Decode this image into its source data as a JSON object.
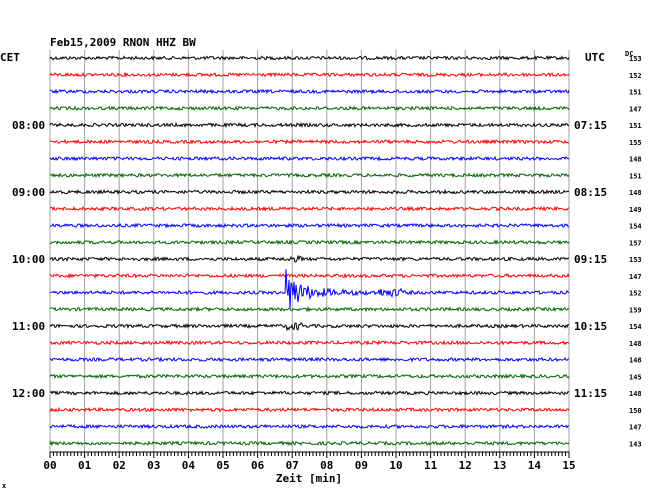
{
  "chart_data": {
    "type": "line",
    "title": "Feb15,2009   RNON HHZ BW",
    "left_label": "CET",
    "right_label": "UTC",
    "dc_label": "DC",
    "xlabel": "Zeit [min]",
    "xlim": [
      0,
      15
    ],
    "x_ticks": [
      "00",
      "01",
      "02",
      "03",
      "04",
      "05",
      "06",
      "07",
      "08",
      "09",
      "10",
      "11",
      "12",
      "13",
      "14",
      "15"
    ],
    "rows": 24,
    "trace_colors": [
      "#000000",
      "#ff0000",
      "#0000ff",
      "#006400"
    ],
    "left_time_labels": [
      {
        "row": 4,
        "text": "08:00"
      },
      {
        "row": 8,
        "text": "09:00"
      },
      {
        "row": 12,
        "text": "10:00"
      },
      {
        "row": 16,
        "text": "11:00"
      },
      {
        "row": 20,
        "text": "12:00"
      }
    ],
    "right_time_labels": [
      {
        "row": 4,
        "text": "07:15"
      },
      {
        "row": 8,
        "text": "08:15"
      },
      {
        "row": 12,
        "text": "09:15"
      },
      {
        "row": 16,
        "text": "10:15"
      },
      {
        "row": 20,
        "text": "11:15"
      }
    ],
    "dc_values": [
      "153",
      "152",
      "151",
      "147",
      "151",
      "155",
      "148",
      "151",
      "148",
      "149",
      "154",
      "157",
      "153",
      "147",
      "152",
      "159",
      "154",
      "148",
      "148",
      "145",
      "148",
      "150",
      "147",
      "143"
    ],
    "event": {
      "row": 14,
      "start_min": 6.8,
      "peak_min": 7.0,
      "end_min": 10.5
    }
  },
  "footer_mark": "x"
}
